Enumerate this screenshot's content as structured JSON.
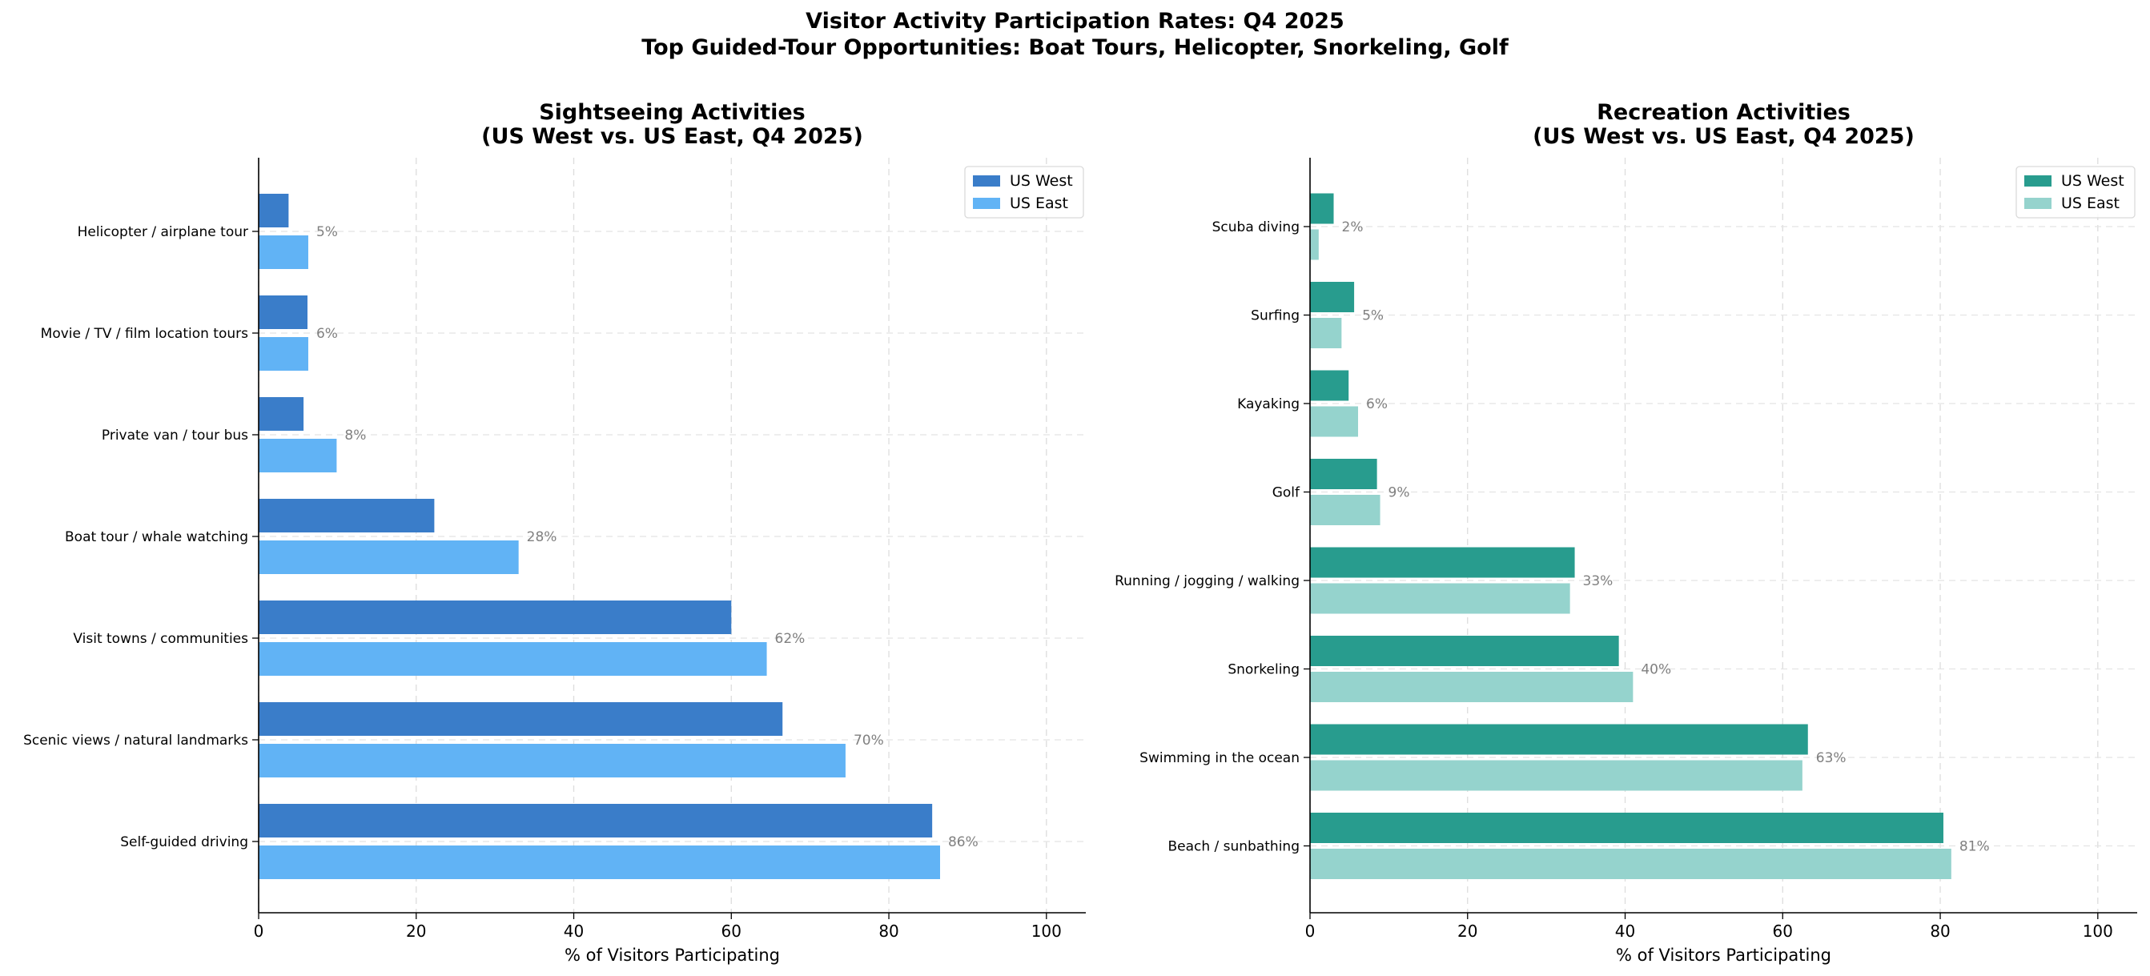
{
  "suptitle": {
    "line1": "Visitor Activity Participation Rates: Q4 2025",
    "line2": "Top Guided-Tour Opportunities: Boat Tours, Helicopter, Snorkeling, Golf"
  },
  "chart_data": [
    {
      "type": "bar",
      "orientation": "horizontal",
      "title": "Sightseeing Activities\n(US West vs. US East, Q4 2025)",
      "xlabel": "% of Visitors Participating",
      "ylabel": "",
      "xlim": [
        0,
        105
      ],
      "xticks": [
        0,
        20,
        40,
        60,
        80,
        100
      ],
      "grid": true,
      "legend": "top-right",
      "categories": [
        "Helicopter / airplane tour",
        "Movie / TV / film location tours",
        "Private van / tour bus",
        "Boat tour / whale watching",
        "Visit towns / communities",
        "Scenic views / natural landmarks",
        "Self-guided driving"
      ],
      "series": [
        {
          "name": "US West",
          "color": "#3a7dc9",
          "values": [
            3.8,
            6.2,
            5.7,
            22.3,
            60.0,
            66.5,
            85.5
          ]
        },
        {
          "name": "US East",
          "color": "#61b3f5",
          "values": [
            6.3,
            6.3,
            9.9,
            33.0,
            64.5,
            74.5,
            86.5
          ]
        }
      ],
      "data_labels": [
        "5%",
        "6%",
        "8%",
        "28%",
        "62%",
        "70%",
        "86%"
      ]
    },
    {
      "type": "bar",
      "orientation": "horizontal",
      "title": "Recreation Activities\n(US West vs. US East, Q4 2025)",
      "xlabel": "% of Visitors Participating",
      "ylabel": "",
      "xlim": [
        0,
        105
      ],
      "xticks": [
        0,
        20,
        40,
        60,
        80,
        100
      ],
      "grid": true,
      "legend": "top-right",
      "categories": [
        "Scuba diving",
        "Surfing",
        "Kayaking",
        "Golf",
        "Running / jogging / walking",
        "Snorkeling",
        "Swimming in the ocean",
        "Beach / sunbathing"
      ],
      "series": [
        {
          "name": "US West",
          "color": "#289c8e",
          "values": [
            3.0,
            5.6,
            4.9,
            8.5,
            33.6,
            39.2,
            63.2,
            80.4
          ]
        },
        {
          "name": "US East",
          "color": "#95d3cd",
          "values": [
            1.1,
            4.0,
            6.1,
            8.9,
            33.0,
            41.0,
            62.5,
            81.4
          ]
        }
      ],
      "data_labels": [
        "2%",
        "5%",
        "6%",
        "9%",
        "33%",
        "40%",
        "63%",
        "81%"
      ]
    }
  ]
}
